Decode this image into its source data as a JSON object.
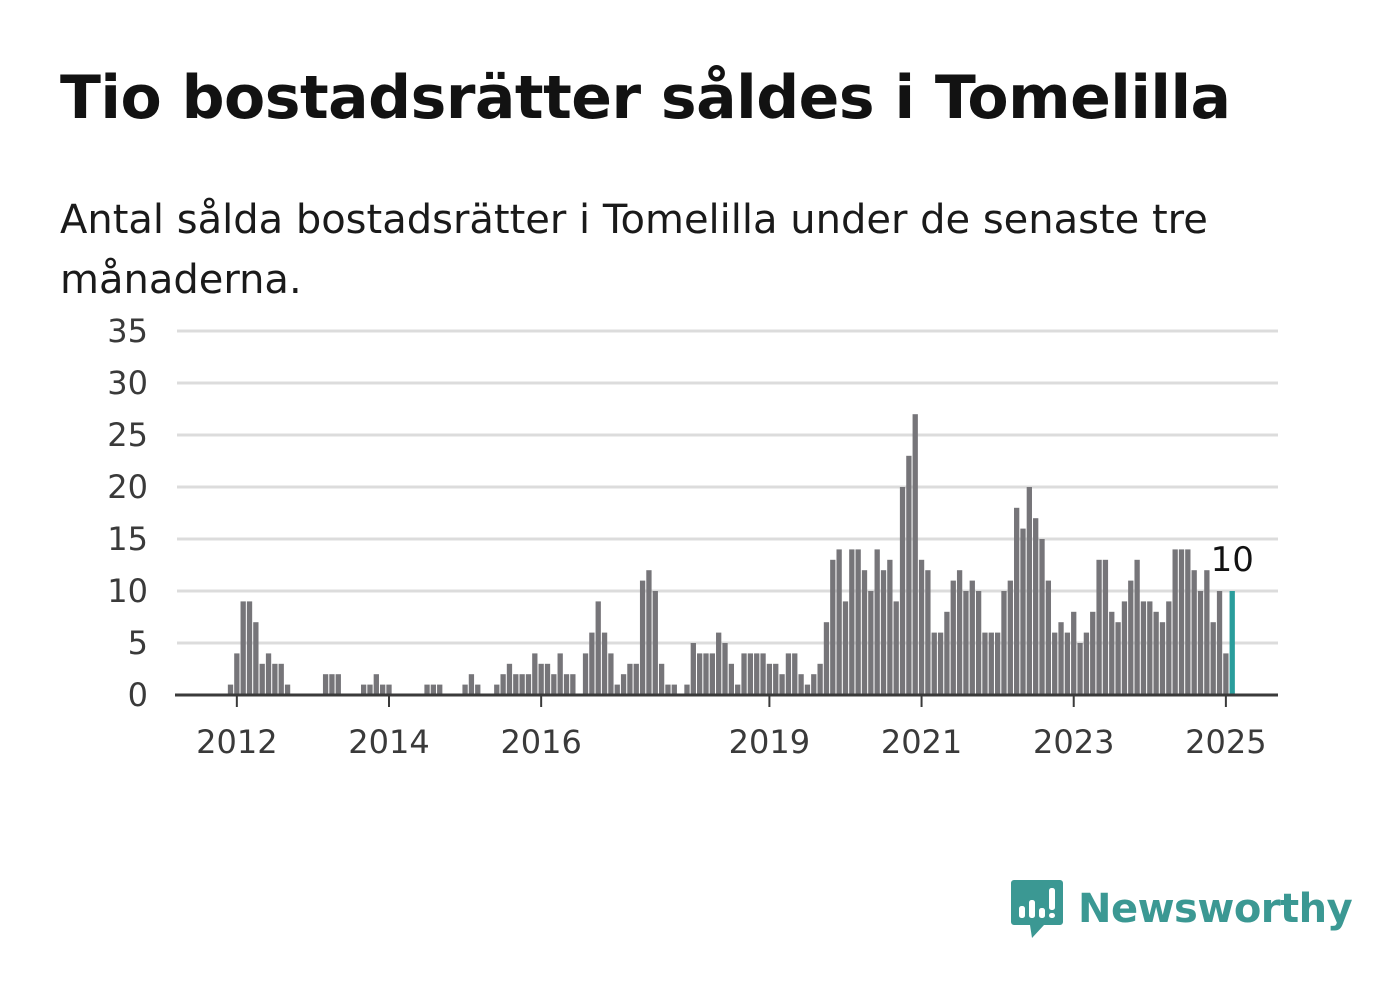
{
  "header": {
    "title": "Tio bostadsrätter såldes i Tomelilla",
    "subtitle": "Antal sålda bostadsrätter i Tomelilla under de senaste tre månaderna."
  },
  "brand": {
    "name": "Newsworthy",
    "color": "#3b9893"
  },
  "colors": {
    "bar": "#767579",
    "highlight": "#2a9d9c",
    "grid": "#dcdcdc",
    "axis": "#3a3a3a"
  },
  "chart_data": {
    "type": "bar",
    "title": "Tio bostadsrätter såldes i Tomelilla",
    "subtitle": "Antal sålda bostadsrätter i Tomelilla under de senaste tre månaderna.",
    "xlabel": "",
    "ylabel": "",
    "start": "2011-12",
    "frequency": "monthly",
    "ylim": [
      0,
      35
    ],
    "yticks": [
      0,
      5,
      10,
      15,
      20,
      25,
      30,
      35
    ],
    "xticks": [
      "2012",
      "2014",
      "2016",
      "2019",
      "2021",
      "2023",
      "2025"
    ],
    "grid": true,
    "values": [
      1,
      4,
      9,
      9,
      7,
      3,
      4,
      3,
      3,
      1,
      0,
      0,
      0,
      0,
      0,
      2,
      2,
      2,
      0,
      0,
      0,
      1,
      1,
      2,
      1,
      1,
      0,
      0,
      0,
      0,
      0,
      1,
      1,
      1,
      0,
      0,
      0,
      1,
      2,
      1,
      0,
      0,
      1,
      2,
      3,
      2,
      2,
      2,
      4,
      3,
      3,
      2,
      4,
      2,
      2,
      0,
      4,
      6,
      9,
      6,
      4,
      1,
      2,
      3,
      3,
      11,
      12,
      10,
      3,
      1,
      1,
      0,
      1,
      5,
      4,
      4,
      4,
      6,
      5,
      3,
      1,
      4,
      4,
      4,
      4,
      3,
      3,
      2,
      4,
      4,
      2,
      1,
      2,
      3,
      7,
      13,
      14,
      9,
      14,
      14,
      12,
      10,
      14,
      12,
      13,
      9,
      20,
      23,
      27,
      13,
      12,
      6,
      6,
      8,
      11,
      12,
      10,
      11,
      10,
      6,
      6,
      6,
      10,
      11,
      18,
      16,
      20,
      17,
      15,
      11,
      6,
      7,
      6,
      8,
      5,
      6,
      8,
      13,
      13,
      8,
      7,
      9,
      11,
      13,
      9,
      9,
      8,
      7,
      9,
      14,
      14,
      14,
      12,
      10,
      12,
      7,
      10,
      4,
      10
    ],
    "highlight_last": true,
    "annotations": [
      {
        "text": "10",
        "target": "last"
      }
    ]
  }
}
